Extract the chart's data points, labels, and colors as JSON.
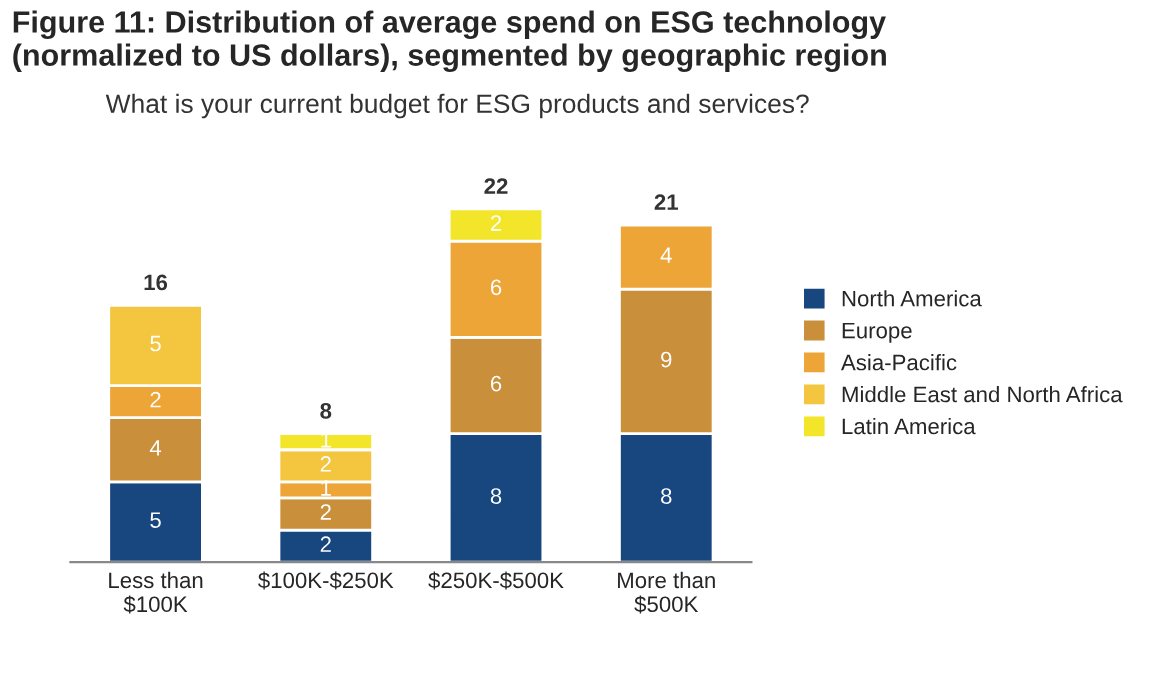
{
  "chart_data": {
    "type": "bar",
    "title": "Figure 11: Distribution of average spend on ESG technology\n(normalized to US dollars), segmented by geographic region",
    "subtitle": "What is your current budget for ESG products and services?",
    "categories": [
      "Less than\n$100K",
      "$100K-$250K",
      "$250K-$500K",
      "More than\n$500K"
    ],
    "stacked": true,
    "data_labels": true,
    "legend": "right",
    "grid": false,
    "totals": [
      "16",
      "8",
      "22",
      "21"
    ],
    "series": [
      {
        "name": "North America",
        "color": "#17477e",
        "values": [
          5,
          2,
          8,
          8
        ]
      },
      {
        "name": "Europe",
        "color": "#c98f3b",
        "values": [
          4,
          2,
          6,
          9
        ]
      },
      {
        "name": "Asia-Pacific",
        "color": "#eda537",
        "values": [
          2,
          1,
          6,
          4
        ]
      },
      {
        "name": "Middle East and North Africa",
        "color": "#f4c53f",
        "values": [
          5,
          2,
          null,
          null
        ]
      },
      {
        "name": "Latin America",
        "color": "#f2e52a",
        "values": [
          null,
          1,
          2,
          null
        ]
      }
    ]
  }
}
